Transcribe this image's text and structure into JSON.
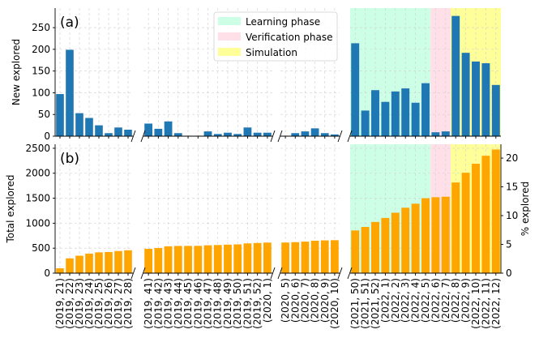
{
  "chart_data": [
    {
      "panel": "top",
      "type": "bar",
      "panel_label": "(a)",
      "ylabel": "New explored",
      "ylim": [
        0,
        295
      ],
      "yticks": [
        0,
        50,
        100,
        150,
        200,
        250
      ],
      "grid": true,
      "bar_color": "#1f77b4",
      "segments": [
        {
          "categories": [
            "(2019, 21)",
            "(2019, 22)",
            "(2019, 23)",
            "(2019, 24)",
            "(2019, 25)",
            "(2019, 26)",
            "(2019, 27)",
            "(2019, 28)"
          ],
          "values": [
            97,
            199,
            53,
            42,
            25,
            7,
            20,
            15
          ]
        },
        {
          "categories": [
            "(2019, 41)",
            "(2019, 42)",
            "(2019, 43)",
            "(2019, 44)",
            "(2019, 45)",
            "(2019, 46)",
            "(2019, 47)",
            "(2019, 48)",
            "(2019, 49)",
            "(2019, 50)",
            "(2019, 51)",
            "(2019, 52)",
            "(2020, 1)"
          ],
          "values": [
            29,
            17,
            34,
            7,
            1,
            1,
            11,
            5,
            8,
            5,
            20,
            8,
            8
          ]
        },
        {
          "categories": [
            "(2020, 5)",
            "(2020, 6)",
            "(2020, 7)",
            "(2020, 8)",
            "(2020, 9)",
            "(2020, 10)"
          ],
          "values": [
            1,
            7,
            11,
            18,
            7,
            4
          ]
        },
        {
          "categories": [
            "(2021, 50)",
            "(2021, 51)",
            "(2021, 52)",
            "(2022, 1)",
            "(2022, 2)",
            "(2022, 3)",
            "(2022, 4)",
            "(2022, 5)",
            "(2022, 6)",
            "(2022, 7)",
            "(2022, 8)",
            "(2022, 9)",
            "(2022, 10)",
            "(2022, 11)",
            "(2022, 12)"
          ],
          "values": [
            214,
            59,
            106,
            79,
            103,
            110,
            77,
            122,
            9,
            11,
            277,
            192,
            172,
            168,
            118
          ]
        }
      ],
      "legend": {
        "position": "top-center",
        "entries": [
          {
            "label": "Learning phase",
            "color": "#ccffe6"
          },
          {
            "label": "Verification phase",
            "color": "#ffe0e8"
          },
          {
            "label": "Simulation",
            "color": "#ffff99"
          }
        ]
      }
    },
    {
      "panel": "bottom",
      "type": "bar",
      "panel_label": "(b)",
      "ylabel": "Total explored",
      "ylabel_right": "% explored",
      "ylim": [
        0,
        2580
      ],
      "yticks": [
        0,
        500,
        1000,
        1500,
        2000,
        2500
      ],
      "ylim_right": [
        0,
        22.4
      ],
      "yticks_right": [
        0,
        5,
        10,
        15,
        20
      ],
      "grid": true,
      "bar_color": "#ffa500",
      "segments": [
        {
          "categories": [
            "(2019, 21)",
            "(2019, 22)",
            "(2019, 23)",
            "(2019, 24)",
            "(2019, 25)",
            "(2019, 26)",
            "(2019, 27)",
            "(2019, 28)"
          ],
          "values": [
            97,
            296,
            349,
            391,
            416,
            423,
            443,
            458
          ]
        },
        {
          "categories": [
            "(2019, 41)",
            "(2019, 42)",
            "(2019, 43)",
            "(2019, 44)",
            "(2019, 45)",
            "(2019, 46)",
            "(2019, 47)",
            "(2019, 48)",
            "(2019, 49)",
            "(2019, 50)",
            "(2019, 51)",
            "(2019, 52)",
            "(2020, 1)"
          ],
          "values": [
            487,
            504,
            538,
            545,
            546,
            547,
            558,
            563,
            571,
            576,
            596,
            604,
            612
          ]
        },
        {
          "categories": [
            "(2020, 5)",
            "(2020, 6)",
            "(2020, 7)",
            "(2020, 8)",
            "(2020, 9)",
            "(2020, 10)"
          ],
          "values": [
            613,
            620,
            631,
            649,
            656,
            660
          ]
        },
        {
          "categories": [
            "(2021, 50)",
            "(2021, 51)",
            "(2021, 52)",
            "(2022, 1)",
            "(2022, 2)",
            "(2022, 3)",
            "(2022, 4)",
            "(2022, 5)",
            "(2022, 6)",
            "(2022, 7)",
            "(2022, 8)",
            "(2022, 9)",
            "(2022, 10)",
            "(2022, 11)",
            "(2022, 12)"
          ],
          "values": [
            855,
            925,
            1025,
            1105,
            1210,
            1310,
            1390,
            1500,
            1520,
            1530,
            1815,
            2010,
            2190,
            2350,
            2475
          ]
        }
      ]
    }
  ],
  "phase_spans": [
    {
      "name": "Learning phase",
      "segment": 3,
      "from": "(2021, 50)",
      "to": "(2022, 5)",
      "color": "#ccffe6"
    },
    {
      "name": "Verification phase",
      "segment": 3,
      "from": "(2022, 6)",
      "to": "(2022, 7)",
      "color": "#ffe0e8"
    },
    {
      "name": "Simulation",
      "segment": 3,
      "from": "(2022, 8)",
      "to": "(2022, 12)",
      "color": "#ffff99"
    }
  ]
}
